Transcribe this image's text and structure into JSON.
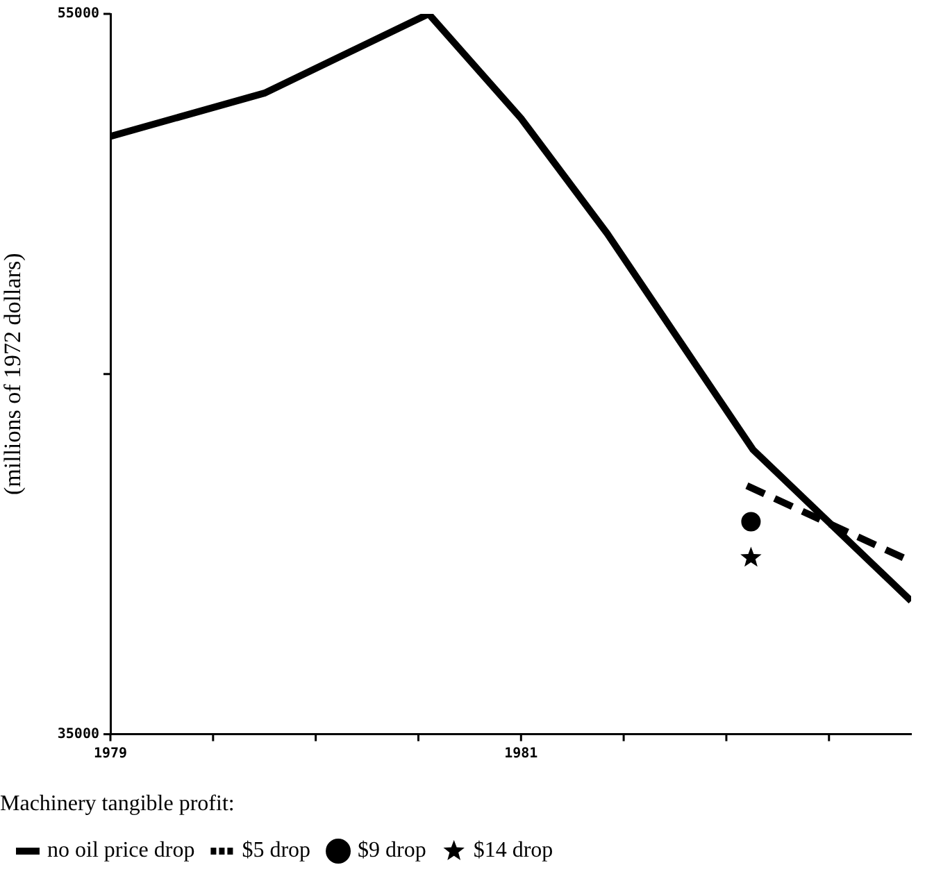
{
  "chart_data": {
    "type": "line",
    "title": "Machinery tangible profit:",
    "ylabel": "(millions of 1972 dollars)",
    "xlim": [
      1979,
      1982.9
    ],
    "xticks": [
      1979,
      {
        "value": 1979.5,
        "label": null
      },
      {
        "value": 1980,
        "label": null
      },
      {
        "value": 1980.5,
        "label": null
      },
      1981,
      {
        "value": 1981.5,
        "label": null
      },
      {
        "value": 1982,
        "label": null
      },
      {
        "value": 1982.5,
        "label": null
      }
    ],
    "ylim": [
      35000,
      55000
    ],
    "yticks": [
      35000,
      {
        "value": 45000,
        "label": null
      },
      55000
    ],
    "grid": false,
    "legend": "bottom",
    "line_style": "solid",
    "series": [
      {
        "name": "no oil price drop",
        "color": "#000000",
        "marker": "none",
        "x": [
          1979,
          1979.75,
          1980.55,
          1981,
          1981.42,
          1982.13,
          1982.9
        ],
        "values": [
          51600,
          52800,
          55000,
          52100,
          48900,
          42900,
          38700
        ]
      },
      {
        "name": "$5 drop",
        "color": "#000000",
        "marker": "none",
        "line_style": "dashed",
        "x": [
          1982.1,
          1982.9
        ],
        "values": [
          41900,
          39800
        ]
      },
      {
        "name": "$9 drop",
        "type": "scatter",
        "color": "#000000",
        "marker": "circle",
        "x": [
          1982.12
        ],
        "values": [
          40900
        ]
      },
      {
        "name": "$14 drop",
        "type": "scatter",
        "color": "#000000",
        "marker": "star",
        "x": [
          1982.12
        ],
        "values": [
          39900
        ]
      }
    ]
  }
}
